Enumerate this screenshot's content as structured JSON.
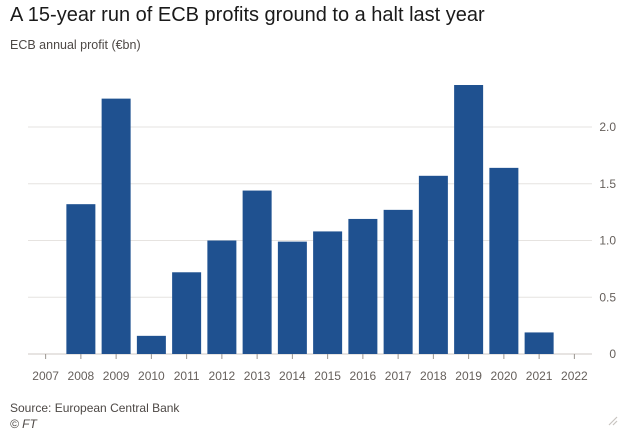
{
  "header": {
    "title": "A 15-year run of ECB profits ground to a halt last year",
    "subtitle": "ECB annual profit (€bn)"
  },
  "footer": {
    "source": "Source: European Central Bank",
    "credit": "© FT"
  },
  "icons": {
    "corner": "resize-handle-icon"
  },
  "colors": {
    "bar": "#1f5190",
    "grid": "#e6e3e0",
    "axis_text": "#66605c"
  },
  "chart_data": {
    "type": "bar",
    "categories": [
      "2007",
      "2008",
      "2009",
      "2010",
      "2011",
      "2012",
      "2013",
      "2014",
      "2015",
      "2016",
      "2017",
      "2018",
      "2019",
      "2020",
      "2021",
      "2022"
    ],
    "values": [
      0,
      1.32,
      2.25,
      0.16,
      0.72,
      1.0,
      1.44,
      0.99,
      1.08,
      1.19,
      1.27,
      1.57,
      2.37,
      1.64,
      0.19,
      0
    ],
    "title": "A 15-year run of ECB profits ground to a halt last year",
    "ylabel": "ECB annual profit (€bn)",
    "xlabel": "",
    "ylim": [
      0,
      2.5
    ],
    "yticks": [
      0,
      0.5,
      1.0,
      1.5,
      2.0
    ],
    "ytick_labels": [
      "0",
      "0.5",
      "1.0",
      "1.5",
      "2.0"
    ],
    "y_axis_position": "right",
    "grid": true
  }
}
